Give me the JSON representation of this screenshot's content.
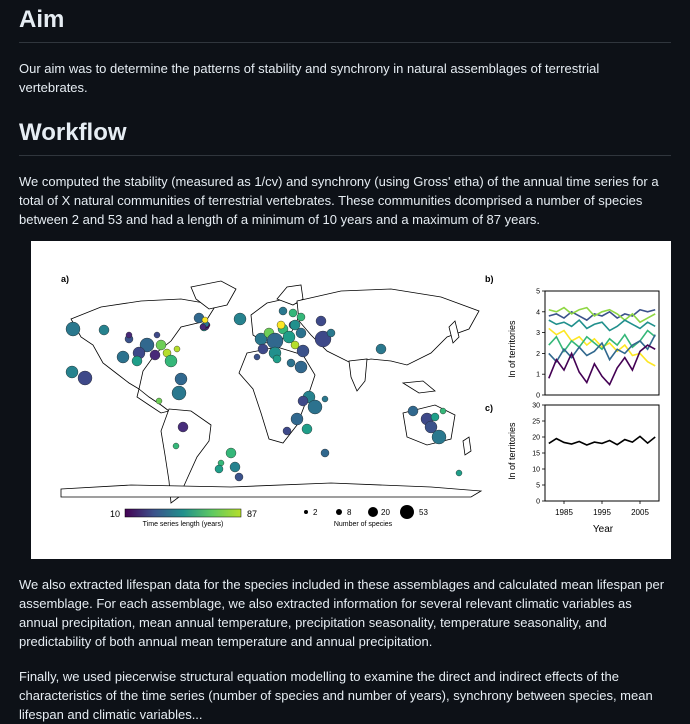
{
  "aim": {
    "heading": "Aim",
    "text": "Our aim was to determine the patterns of stability and synchrony in natural assemblages of terrestrial vertebrates."
  },
  "workflow": {
    "heading": "Workflow",
    "text": "We computed the stability (measured as 1/cv) and synchrony (using Gross' etha) of the annual time series for a total of X natural communities of terrestrial vertebrates. These communities dcomprised a number of species between 2 and 53 and had a length of a minimum of 10 years and a maximum of 87 years."
  },
  "figure": {
    "panel_a": "a)",
    "panel_b": "b)",
    "panel_c": "c)",
    "colorbar": {
      "min": "10",
      "max": "87",
      "label": "Time series length (years)",
      "low_color": "#440154",
      "high_color": "#b5de2b"
    },
    "size_legend": {
      "values": [
        "2",
        "8",
        "20",
        "53"
      ],
      "label": "Number of species"
    },
    "b_ylabel": "ln of territories",
    "c_ylabel": "ln of territories",
    "xlabel": "Year"
  },
  "chart_data": [
    {
      "type": "line",
      "title": "b)",
      "ylabel": "ln of territories",
      "ylim": [
        0,
        5
      ],
      "yticks": [
        0,
        1,
        2,
        3,
        4,
        5
      ],
      "x": [
        1981,
        1983,
        1985,
        1987,
        1989,
        1991,
        1993,
        1995,
        1997,
        1999,
        2001,
        2003,
        2005,
        2007,
        2009
      ],
      "series": [
        {
          "color": "#3b528b",
          "values": [
            3.8,
            3.9,
            3.7,
            4.0,
            3.8,
            3.6,
            3.9,
            3.8,
            4.0,
            3.7,
            3.9,
            3.8,
            4.1,
            4.0,
            4.1
          ]
        },
        {
          "color": "#8fd744",
          "values": [
            4.1,
            4.0,
            4.2,
            3.9,
            4.1,
            4.2,
            3.8,
            4.0,
            4.1,
            3.9,
            3.6,
            3.9,
            3.5,
            3.7,
            3.9
          ]
        },
        {
          "color": "#21908d",
          "values": [
            3.6,
            3.4,
            3.5,
            3.3,
            3.6,
            3.2,
            3.4,
            3.5,
            3.1,
            3.3,
            3.6,
            3.4,
            3.2,
            3.5,
            3.3
          ]
        },
        {
          "color": "#fde725",
          "values": [
            3.2,
            2.9,
            3.1,
            2.6,
            2.8,
            2.4,
            2.7,
            2.3,
            2.5,
            2.1,
            2.4,
            1.9,
            2.0,
            1.6,
            1.4
          ]
        },
        {
          "color": "#35b779",
          "values": [
            2.4,
            2.8,
            2.1,
            2.6,
            2.3,
            2.8,
            2.5,
            2.2,
            2.7,
            2.4,
            2.9,
            2.3,
            2.6,
            3.1,
            2.8
          ]
        },
        {
          "color": "#31688e",
          "values": [
            2.0,
            1.6,
            2.2,
            1.8,
            2.3,
            1.9,
            2.1,
            2.5,
            1.7,
            2.2,
            2.0,
            2.4,
            2.6,
            2.2,
            2.9
          ]
        },
        {
          "color": "#440154",
          "values": [
            0.8,
            1.7,
            1.2,
            2.0,
            1.1,
            0.6,
            1.5,
            0.9,
            0.5,
            1.3,
            1.8,
            1.2,
            2.1,
            2.4,
            2.2
          ]
        }
      ]
    },
    {
      "type": "line",
      "title": "c)",
      "xlabel": "Year",
      "ylabel": "ln of territories",
      "ylim": [
        0,
        30
      ],
      "yticks": [
        0,
        5,
        10,
        15,
        20,
        25,
        30
      ],
      "xticks": [
        "1985",
        "1995",
        "2005"
      ],
      "x": [
        1981,
        1983,
        1985,
        1987,
        1989,
        1991,
        1993,
        1995,
        1997,
        1999,
        2001,
        2003,
        2005,
        2007,
        2009
      ],
      "series": [
        {
          "color": "#000000",
          "values": [
            18.0,
            19.5,
            18.3,
            17.8,
            18.6,
            17.5,
            18.4,
            18.0,
            18.9,
            17.6,
            19.2,
            18.4,
            20.2,
            18.1,
            20.0
          ]
        }
      ]
    }
  ],
  "after": {
    "text": "We also extracted lifespan data for the species included in these assemblages and calculated mean lifespan per assemblage. For each assemblage, we also extracted information for several relevant climatic variables as annual precipitation, mean annual temperature, precipitation seasonality, temperature seasonality, and predictability of both annual mean temperature and annual precipitation."
  },
  "final": {
    "text": "Finally, we used piecerwise structural equation modelling to examine the direct and indirect effects of the characteristics of the time series (number of species and number of years), synchrony between species, mean lifespan and climatic variables..."
  }
}
